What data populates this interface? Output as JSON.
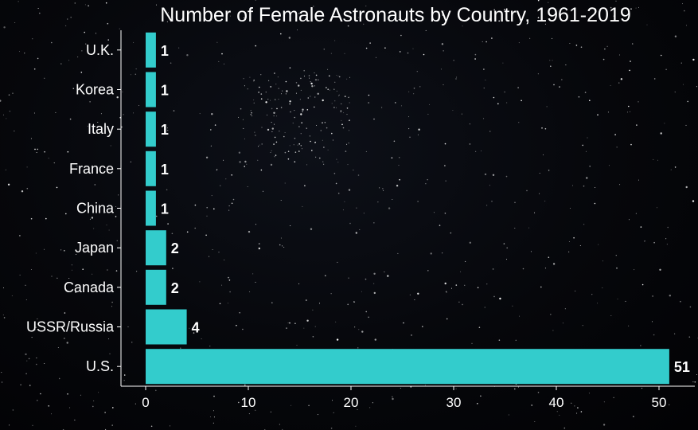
{
  "chart_data": {
    "type": "bar",
    "orientation": "horizontal",
    "title": "Number of Female Astronauts by Country, 1961-2019",
    "xlabel": "",
    "ylabel": "",
    "categories": [
      "U.S.",
      "USSR/Russia",
      "Canada",
      "Japan",
      "China",
      "France",
      "Italy",
      "Korea",
      "U.K."
    ],
    "values": [
      51,
      4,
      2,
      2,
      1,
      1,
      1,
      1,
      1
    ],
    "data_labels": [
      "51",
      "4",
      "2",
      "2",
      "1",
      "1",
      "1",
      "1",
      "1"
    ],
    "xlim": [
      0,
      52.5
    ],
    "xticks": [
      0,
      10,
      20,
      30,
      40,
      50
    ],
    "xtick_labels": [
      "0",
      "10",
      "20",
      "30",
      "40",
      "50"
    ],
    "grid": false,
    "legend": "none",
    "colors": {
      "bar": "#33cccc",
      "text": "#ffffff",
      "axis": "#ffffff",
      "background": "#06070b"
    }
  }
}
